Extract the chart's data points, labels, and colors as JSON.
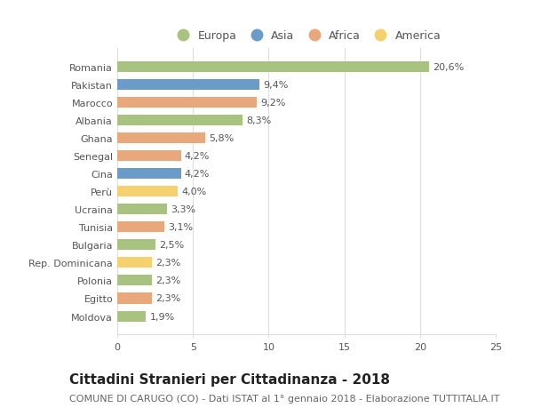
{
  "categories": [
    "Romania",
    "Pakistan",
    "Marocco",
    "Albania",
    "Ghana",
    "Senegal",
    "Cina",
    "Perù",
    "Ucraina",
    "Tunisia",
    "Bulgaria",
    "Rep. Dominicana",
    "Polonia",
    "Egitto",
    "Moldova"
  ],
  "values": [
    20.6,
    9.4,
    9.2,
    8.3,
    5.8,
    4.2,
    4.2,
    4.0,
    3.3,
    3.1,
    2.5,
    2.3,
    2.3,
    2.3,
    1.9
  ],
  "labels": [
    "20,6%",
    "9,4%",
    "9,2%",
    "8,3%",
    "5,8%",
    "4,2%",
    "4,2%",
    "4,0%",
    "3,3%",
    "3,1%",
    "2,5%",
    "2,3%",
    "2,3%",
    "2,3%",
    "1,9%"
  ],
  "continents": [
    "Europa",
    "Asia",
    "Africa",
    "Europa",
    "Africa",
    "Africa",
    "Asia",
    "America",
    "Europa",
    "Africa",
    "Europa",
    "America",
    "Europa",
    "Africa",
    "Europa"
  ],
  "colors": {
    "Europa": "#a8c37f",
    "Asia": "#6b9bc9",
    "Africa": "#e8a87c",
    "America": "#f5d06e"
  },
  "legend_order": [
    "Europa",
    "Asia",
    "Africa",
    "America"
  ],
  "title": "Cittadini Stranieri per Cittadinanza - 2018",
  "subtitle": "COMUNE DI CARUGO (CO) - Dati ISTAT al 1° gennaio 2018 - Elaborazione TUTTITALIA.IT",
  "xlim": [
    0,
    25
  ],
  "xticks": [
    0,
    5,
    10,
    15,
    20,
    25
  ],
  "background_color": "#ffffff",
  "grid_color": "#dddddd",
  "bar_height": 0.6,
  "title_fontsize": 11,
  "subtitle_fontsize": 8,
  "label_fontsize": 8,
  "tick_fontsize": 8,
  "legend_fontsize": 9
}
